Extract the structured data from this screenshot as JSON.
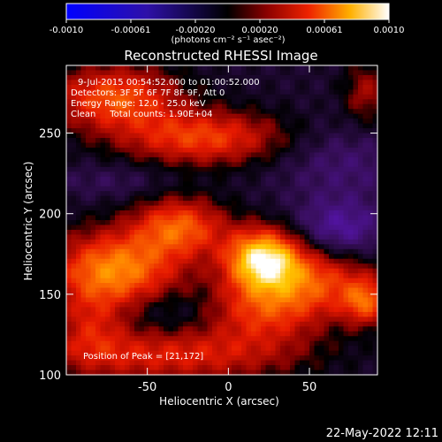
{
  "chart_data": {
    "type": "heatmap",
    "title": "Reconstructed RHESSI Image",
    "xlabel": "Heliocentric X (arcsec)",
    "ylabel": "Heliocentric Y (arcsec)",
    "x_ticks": [
      -50,
      0,
      50
    ],
    "y_ticks": [
      100,
      150,
      200,
      250
    ],
    "xlim": [
      -100,
      92
    ],
    "ylim": [
      100,
      292
    ],
    "colorbar": {
      "ticks": [
        "-0.0010",
        "-0.00061",
        "-0.00020",
        "0.00020",
        "0.00061",
        "0.0010"
      ],
      "label": "(photons cm⁻² s⁻¹ asec⁻²)",
      "range": [
        -0.001,
        0.001
      ]
    },
    "annotations": [
      "9-Jul-2015 00:54:52.000 to 01:00:52.000",
      "Detectors: 3F 5F 6F 7F 8F 9F, Att 0",
      "Energy Range: 12.0 - 25.0 keV",
      "Clean     Total counts: 1.90E+04"
    ],
    "peak_text": "Position of Peak = [21,172]",
    "peak": {
      "x": 21,
      "y": 172
    },
    "features": [
      {
        "x": 21,
        "y": 172,
        "sx": 16,
        "sy": 13,
        "amp": 0.00095
      },
      {
        "x": -70,
        "y": 165,
        "sx": 28,
        "sy": 17,
        "amp": 0.00075
      },
      {
        "x": -30,
        "y": 192,
        "sx": 20,
        "sy": 13,
        "amp": 0.0006
      },
      {
        "x": 55,
        "y": 160,
        "sx": 26,
        "sy": 17,
        "amp": 0.00055
      },
      {
        "x": 20,
        "y": 140,
        "sx": 24,
        "sy": 15,
        "amp": 0.00045
      },
      {
        "x": -15,
        "y": 247,
        "sx": 36,
        "sy": 12,
        "amp": 0.00055
      },
      {
        "x": -70,
        "y": 272,
        "sx": 28,
        "sy": 14,
        "amp": 0.0006
      },
      {
        "x": -85,
        "y": 130,
        "sx": 16,
        "sy": 16,
        "amp": 0.0003
      },
      {
        "x": -35,
        "y": 112,
        "sx": 55,
        "sy": 12,
        "amp": 0.00045
      },
      {
        "x": 85,
        "y": 145,
        "sx": 10,
        "sy": 10,
        "amp": 0.0005
      },
      {
        "x": 85,
        "y": 275,
        "sx": 10,
        "sy": 14,
        "amp": 0.0003
      },
      {
        "x": 68,
        "y": 188,
        "sx": 20,
        "sy": 14,
        "amp": -0.0004
      },
      {
        "x": 70,
        "y": 232,
        "sx": 30,
        "sy": 16,
        "amp": -0.00018
      },
      {
        "x": -70,
        "y": 220,
        "sx": 26,
        "sy": 8,
        "amp": -0.00012
      },
      {
        "x": -40,
        "y": 140,
        "sx": 20,
        "sy": 10,
        "amp": -0.00012
      }
    ]
  },
  "footer": {
    "date": "22-May-2022 12:11"
  }
}
